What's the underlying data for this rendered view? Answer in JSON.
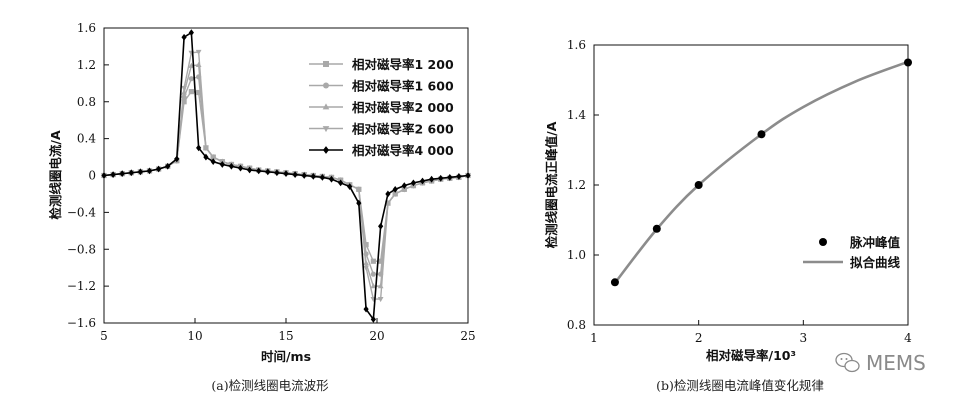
{
  "chart_data": [
    {
      "type": "line",
      "xlabel": "时间/ms",
      "ylabel": "检测线圈电流/A",
      "xlim": [
        5,
        25
      ],
      "ylim": [
        -1.6,
        1.6
      ],
      "xticks": [
        "5",
        "10",
        "15",
        "20",
        "25"
      ],
      "yticks": [
        "1.6",
        "1.2",
        "0.8",
        "0.4",
        "0",
        "−0.4",
        "−0.8",
        "−1.2",
        "−1.6"
      ],
      "x": [
        5,
        5.5,
        6,
        6.5,
        7,
        7.5,
        8,
        8.5,
        9,
        9.4,
        9.8,
        10.2,
        10.6,
        11,
        11.5,
        12,
        12.5,
        13,
        13.5,
        14,
        14.5,
        15,
        15.5,
        16,
        16.5,
        17,
        17.5,
        18,
        18.5,
        19,
        19.4,
        19.8,
        20.2,
        20.6,
        21,
        21.5,
        22,
        22.5,
        23,
        23.5,
        24,
        24.5,
        25
      ],
      "series": [
        {
          "name": "相对磁导率1 200",
          "color": "#a9a9a9",
          "marker": "square",
          "values": [
            0,
            0.01,
            0.02,
            0.03,
            0.04,
            0.05,
            0.07,
            0.1,
            0.16,
            0.8,
            0.91,
            0.9,
            0.3,
            0.2,
            0.15,
            0.12,
            0.1,
            0.08,
            0.06,
            0.05,
            0.04,
            0.03,
            0.02,
            0.01,
            0,
            -0.01,
            -0.02,
            -0.05,
            -0.1,
            -0.15,
            -0.75,
            -0.93,
            -0.93,
            -0.3,
            -0.2,
            -0.15,
            -0.11,
            -0.08,
            -0.06,
            -0.04,
            -0.03,
            -0.02,
            0
          ]
        },
        {
          "name": "相对磁导率1 600",
          "color": "#a9a9a9",
          "marker": "circle",
          "values": [
            0,
            0.01,
            0.02,
            0.03,
            0.04,
            0.05,
            0.07,
            0.1,
            0.16,
            0.85,
            1.05,
            1.07,
            0.3,
            0.2,
            0.15,
            0.12,
            0.1,
            0.08,
            0.06,
            0.05,
            0.04,
            0.03,
            0.02,
            0.01,
            0,
            -0.01,
            -0.02,
            -0.05,
            -0.1,
            -0.15,
            -0.85,
            -1.07,
            -1.07,
            -0.3,
            -0.2,
            -0.15,
            -0.11,
            -0.08,
            -0.06,
            -0.04,
            -0.03,
            -0.02,
            0
          ]
        },
        {
          "name": "相对磁导率2 000",
          "color": "#a9a9a9",
          "marker": "triangle-up",
          "values": [
            0,
            0.01,
            0.02,
            0.03,
            0.04,
            0.05,
            0.07,
            0.1,
            0.16,
            0.9,
            1.19,
            1.2,
            0.3,
            0.2,
            0.15,
            0.12,
            0.1,
            0.08,
            0.06,
            0.05,
            0.04,
            0.03,
            0.02,
            0.01,
            0,
            -0.01,
            -0.02,
            -0.05,
            -0.1,
            -0.15,
            -0.95,
            -1.2,
            -1.2,
            -0.3,
            -0.2,
            -0.15,
            -0.11,
            -0.08,
            -0.06,
            -0.04,
            -0.03,
            -0.02,
            0
          ]
        },
        {
          "name": "相对磁导率2 600",
          "color": "#a9a9a9",
          "marker": "triangle-down",
          "values": [
            0,
            0.01,
            0.02,
            0.03,
            0.04,
            0.05,
            0.07,
            0.1,
            0.16,
            0.95,
            1.33,
            1.34,
            0.3,
            0.2,
            0.15,
            0.12,
            0.1,
            0.08,
            0.06,
            0.05,
            0.04,
            0.03,
            0.02,
            0.01,
            0,
            -0.01,
            -0.02,
            -0.05,
            -0.1,
            -0.15,
            -1.0,
            -1.34,
            -1.34,
            -0.3,
            -0.2,
            -0.15,
            -0.11,
            -0.08,
            -0.06,
            -0.04,
            -0.03,
            -0.02,
            0
          ]
        },
        {
          "name": "相对磁导率4 000",
          "color": "#000000",
          "marker": "diamond",
          "values": [
            0,
            0.01,
            0.02,
            0.03,
            0.04,
            0.05,
            0.07,
            0.1,
            0.18,
            1.5,
            1.55,
            0.3,
            0.2,
            0.15,
            0.12,
            0.1,
            0.08,
            0.06,
            0.05,
            0.04,
            0.03,
            0.02,
            0.01,
            0,
            -0.01,
            -0.02,
            -0.04,
            -0.08,
            -0.12,
            -0.3,
            -1.45,
            -1.56,
            -0.55,
            -0.2,
            -0.15,
            -0.11,
            -0.08,
            -0.06,
            -0.04,
            -0.03,
            -0.02,
            -0.01,
            0
          ]
        }
      ],
      "legend": "top-right",
      "grid": false,
      "caption": "(a)检测线圈电流波形"
    },
    {
      "type": "scatter",
      "xlabel": "相对磁导率/10³",
      "ylabel": "检测线圈电流正峰值/A",
      "xlim": [
        1,
        4
      ],
      "ylim": [
        0.8,
        1.6
      ],
      "xticks": [
        "1",
        "2",
        "3",
        "4"
      ],
      "yticks": [
        "1.6",
        "1.4",
        "1.2",
        "1.0",
        "0.8"
      ],
      "points": {
        "name": "脉冲峰值",
        "x": [
          1.2,
          1.6,
          2.0,
          2.6,
          4.0
        ],
        "y": [
          0.922,
          1.075,
          1.2,
          1.345,
          1.55
        ]
      },
      "fit": {
        "name": "拟合曲线",
        "x": [
          1.2,
          1.6,
          2.0,
          2.6,
          3.0,
          3.5,
          4.0
        ],
        "y": [
          0.92,
          1.074,
          1.2,
          1.345,
          1.423,
          1.496,
          1.552
        ]
      },
      "legend": "center-right",
      "grid": false,
      "caption": "(b)检测线圈电流峰值变化规律"
    }
  ],
  "watermark": {
    "text": "MEMS",
    "icon": "wechat-icon"
  }
}
